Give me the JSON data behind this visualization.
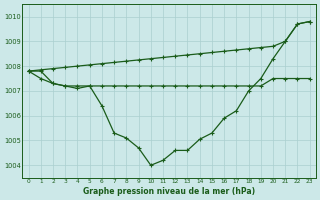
{
  "title": "Graphe pression niveau de la mer (hPa)",
  "background_color": "#cce8e8",
  "grid_color": "#aacfcf",
  "line_color": "#1a5c1a",
  "x_hours": [
    0,
    1,
    2,
    3,
    4,
    5,
    6,
    7,
    8,
    9,
    10,
    11,
    12,
    13,
    14,
    15,
    16,
    17,
    18,
    19,
    20,
    21,
    22,
    23
  ],
  "line_main": [
    1007.8,
    1007.8,
    1007.3,
    1007.2,
    1007.1,
    1007.2,
    1006.4,
    1005.3,
    1005.1,
    1004.7,
    1004.0,
    1004.2,
    1004.6,
    1004.6,
    1005.05,
    1005.3,
    1005.9,
    1006.2,
    1007.0,
    1007.5,
    1008.3,
    1009.0,
    1009.7,
    1009.8
  ],
  "line_flat": [
    1007.8,
    1007.5,
    1007.3,
    1007.2,
    1007.2,
    1007.2,
    1007.2,
    1007.2,
    1007.2,
    1007.2,
    1007.2,
    1007.2,
    1007.2,
    1007.2,
    1007.2,
    1007.2,
    1007.2,
    1007.2,
    1007.2,
    1007.2,
    1007.5,
    1007.5,
    1007.5,
    1007.5
  ],
  "line_diag": [
    1007.8,
    1007.85,
    1007.9,
    1007.95,
    1008.0,
    1008.05,
    1008.1,
    1008.15,
    1008.2,
    1008.25,
    1008.3,
    1008.35,
    1008.4,
    1008.45,
    1008.5,
    1008.55,
    1008.6,
    1008.65,
    1008.7,
    1008.75,
    1008.8,
    1009.0,
    1009.7,
    1009.8
  ],
  "ylim": [
    1003.5,
    1010.5
  ],
  "yticks": [
    1004,
    1005,
    1006,
    1007,
    1008,
    1009,
    1010
  ],
  "xlim": [
    -0.5,
    23.5
  ]
}
